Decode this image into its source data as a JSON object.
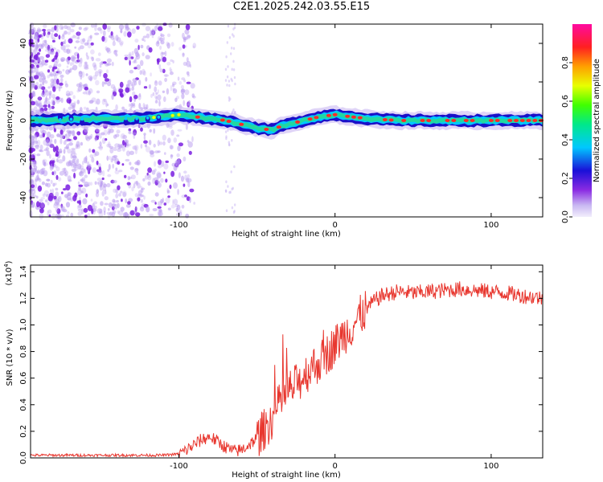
{
  "title": "C2E1.2025.242.03.55.E15",
  "colors": {
    "snr_line": "#e8372f",
    "ridge_core": "#ff2a2a",
    "ridge_mid": "#22d8a0",
    "ridge_edge": "#1a10c8",
    "scatter": "#8a2be2"
  },
  "chart_data": [
    {
      "type": "heatmap",
      "title": "C2E1.2025.242.03.55.E15",
      "xlabel": "Height of straight line (km)",
      "ylabel": "Frequency (Hz)",
      "xlim": [
        -195,
        133
      ],
      "ylim": [
        -50,
        50
      ],
      "xticks": [
        -100,
        0,
        100
      ],
      "xtick_labels": [
        "-100",
        "0",
        "100"
      ],
      "yticks": [
        -40,
        -20,
        0,
        20,
        40
      ],
      "ytick_labels": [
        "-40",
        "-20",
        "0",
        "20",
        "40"
      ],
      "colorbar": {
        "label": "Normalized spectral amplitude",
        "range": [
          0,
          1
        ],
        "ticks": [
          0.0,
          0.2,
          0.4,
          0.6,
          0.8
        ],
        "tick_labels": [
          "0.0",
          "0.2",
          "0.4",
          "0.6",
          "0.8"
        ]
      },
      "ridge": {
        "x": [
          -195,
          -150,
          -125,
          -110,
          -100,
          -90,
          -80,
          -70,
          -60,
          -50,
          -40,
          -35,
          -30,
          -25,
          -20,
          -10,
          0,
          10,
          20,
          40,
          60,
          80,
          100,
          133
        ],
        "freq": [
          0,
          1,
          1,
          2,
          3,
          2,
          1,
          0,
          -2,
          -4,
          -5,
          -3,
          -2,
          -1,
          0,
          2,
          3,
          2,
          1,
          0,
          0,
          0,
          0,
          0
        ]
      }
    },
    {
      "type": "line",
      "xlabel": "Height of straight line (km)",
      "ylabel": "SNR (10 * v/v)",
      "scale_label": "(x10",
      "scale_exp": "4",
      "xlim": [
        -195,
        133
      ],
      "ylim": [
        0,
        1.45
      ],
      "xticks": [
        -100,
        0,
        100
      ],
      "xtick_labels": [
        "-100",
        "0",
        "100"
      ],
      "yticks": [
        0.0,
        0.2,
        0.4,
        0.6,
        0.8,
        1.0,
        1.2,
        1.4
      ],
      "ytick_labels": [
        "0.0",
        "0.2",
        "0.4",
        "0.6",
        "0.8",
        "1.0",
        "1.2",
        "1.4"
      ],
      "series": [
        {
          "name": "SNR",
          "x": [
            -195,
            -150,
            -110,
            -100,
            -95,
            -90,
            -85,
            -80,
            -75,
            -70,
            -65,
            -60,
            -55,
            -50,
            -45,
            -40,
            -35,
            -30,
            -25,
            -20,
            -15,
            -10,
            -5,
            0,
            5,
            10,
            15,
            20,
            25,
            30,
            40,
            50,
            60,
            70,
            80,
            90,
            100,
            110,
            120,
            133
          ],
          "y": [
            0.02,
            0.02,
            0.02,
            0.03,
            0.06,
            0.1,
            0.14,
            0.16,
            0.12,
            0.08,
            0.05,
            0.06,
            0.1,
            0.15,
            0.22,
            0.3,
            0.42,
            0.5,
            0.55,
            0.62,
            0.68,
            0.72,
            0.78,
            0.85,
            0.92,
            0.98,
            1.05,
            1.12,
            1.18,
            1.22,
            1.25,
            1.24,
            1.25,
            1.26,
            1.27,
            1.26,
            1.25,
            1.24,
            1.22,
            1.2
          ]
        }
      ]
    }
  ]
}
